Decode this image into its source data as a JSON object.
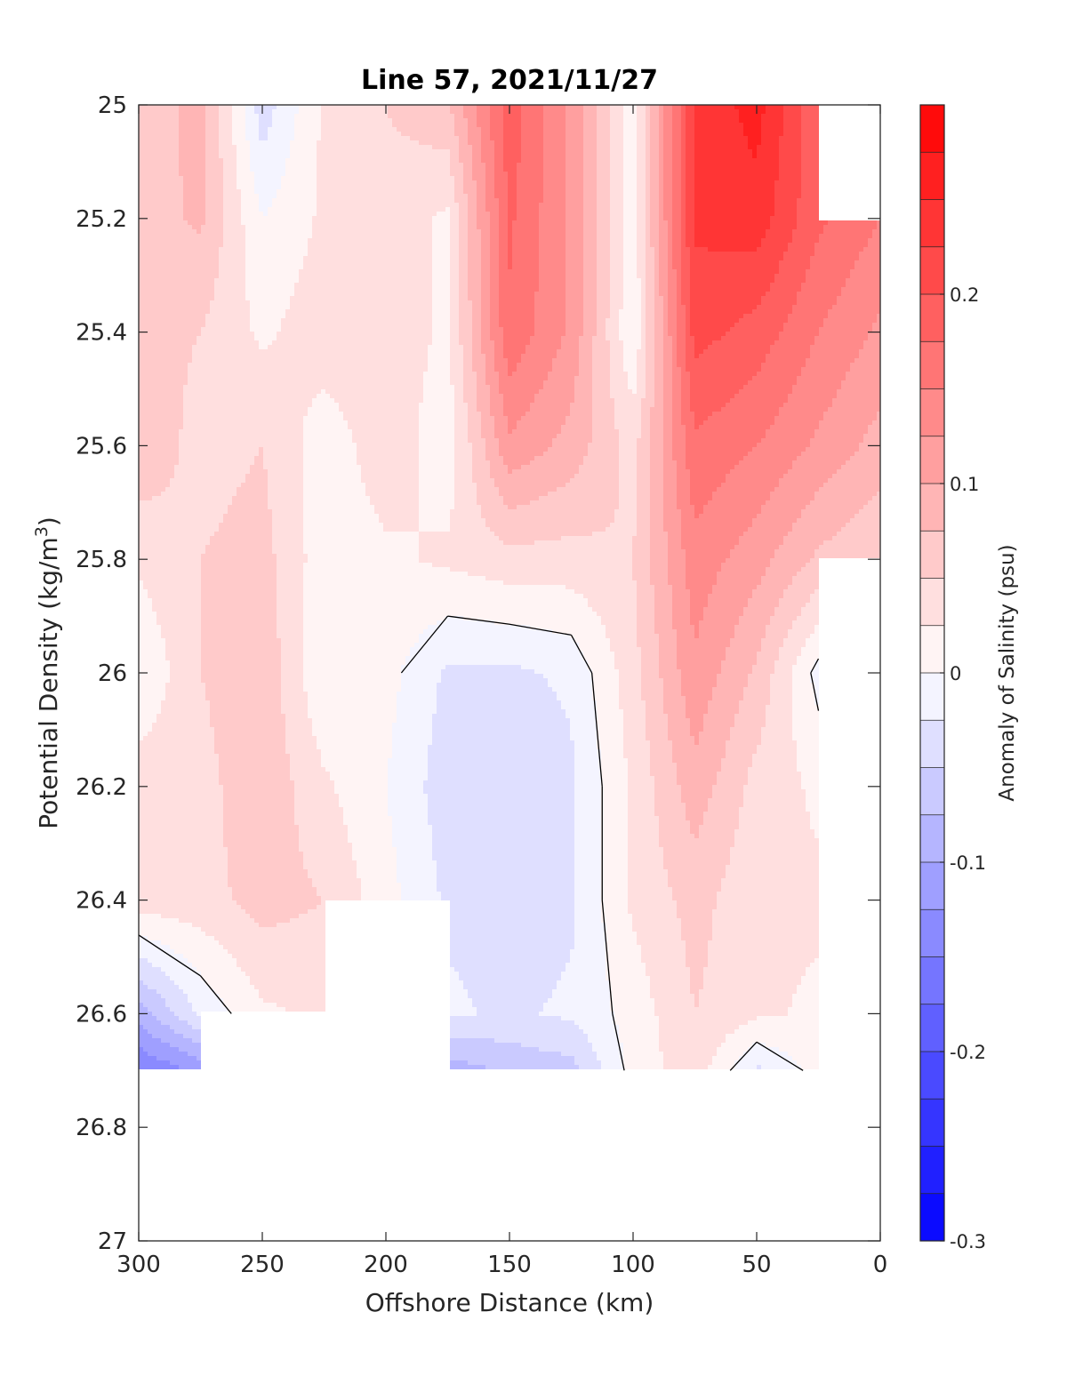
{
  "chart_data": {
    "type": "heatmap",
    "title": "Line 57, 2021/11/27",
    "xlabel": "Offshore Distance (km)",
    "ylabel": "Potential Density (kg/m",
    "ylabel_sup": "3",
    "ylabel_end": ")",
    "xlim": [
      300,
      0
    ],
    "ylim": [
      25,
      27
    ],
    "x_ticks": [
      300,
      250,
      200,
      150,
      100,
      50,
      0
    ],
    "x_tick_labels": [
      "300",
      "250",
      "200",
      "150",
      "100",
      "50",
      "0"
    ],
    "y_ticks": [
      25,
      25.2,
      25.4,
      25.6,
      25.8,
      26,
      26.2,
      26.4,
      26.6,
      26.8,
      27
    ],
    "y_tick_labels": [
      "25",
      "25.2",
      "25.4",
      "25.6",
      "25.8",
      "26",
      "26.2",
      "26.4",
      "26.6",
      "26.8",
      "27"
    ],
    "colorbar": {
      "label": "Anomaly of Salinity (psu)",
      "range": [
        -0.3,
        0.3
      ],
      "step": 0.025,
      "ticks": [
        0.2,
        0.1,
        0,
        -0.1,
        -0.2,
        -0.3
      ],
      "tick_labels": [
        "0.2",
        "0.1",
        "0",
        "-0.1",
        "-0.2",
        "-0.3"
      ],
      "neg_color": "#0000ff",
      "pos_color": "#ff0000"
    },
    "contour_level": 0,
    "field": {
      "x": [
        300,
        275,
        250,
        225,
        200,
        175,
        150,
        125,
        100,
        75,
        50,
        25,
        0
      ],
      "y": [
        25,
        25.2,
        25.4,
        25.6,
        25.8,
        26,
        26.2,
        26.4,
        26.6,
        26.7
      ],
      "values": [
        [
          0.05,
          0.09,
          -0.04,
          0.03,
          0.05,
          0.07,
          0.19,
          0.12,
          0.01,
          0.23,
          0.26,
          0.18,
          null
        ],
        [
          0.06,
          0.08,
          0.0,
          0.03,
          0.04,
          0.02,
          0.18,
          0.12,
          0.01,
          0.23,
          0.24,
          0.18,
          0.15
        ],
        [
          0.06,
          0.05,
          0.02,
          0.04,
          0.04,
          0.02,
          0.17,
          0.12,
          0.0,
          0.21,
          0.19,
          0.15,
          0.12
        ],
        [
          0.07,
          0.04,
          0.05,
          0.01,
          0.04,
          0.01,
          0.12,
          0.09,
          0.04,
          0.17,
          0.15,
          0.12,
          0.09
        ],
        [
          0.03,
          0.05,
          0.06,
          0.01,
          0.02,
          0.03,
          0.04,
          0.04,
          0.05,
          0.14,
          0.11,
          0.07,
          0.05
        ],
        [
          0.0,
          0.05,
          0.07,
          0.0,
          0.01,
          -0.03,
          -0.03,
          -0.02,
          0.04,
          0.12,
          0.07,
          -0.01,
          null
        ],
        [
          0.04,
          0.04,
          0.07,
          0.03,
          0.0,
          -0.04,
          -0.05,
          -0.03,
          0.03,
          0.09,
          0.04,
          0.02,
          null
        ],
        [
          0.04,
          0.04,
          0.06,
          0.05,
          0.01,
          -0.03,
          -0.04,
          -0.03,
          0.03,
          0.06,
          0.03,
          0.03,
          null
        ],
        [
          -0.09,
          -0.02,
          0.02,
          0.03,
          null,
          -0.02,
          -0.03,
          -0.02,
          0.01,
          0.05,
          0.03,
          0.02,
          null
        ],
        [
          -0.15,
          -0.12,
          null,
          null,
          null,
          -0.09,
          -0.07,
          -0.06,
          0.01,
          0.04,
          -0.03,
          0.01,
          null
        ]
      ]
    }
  }
}
